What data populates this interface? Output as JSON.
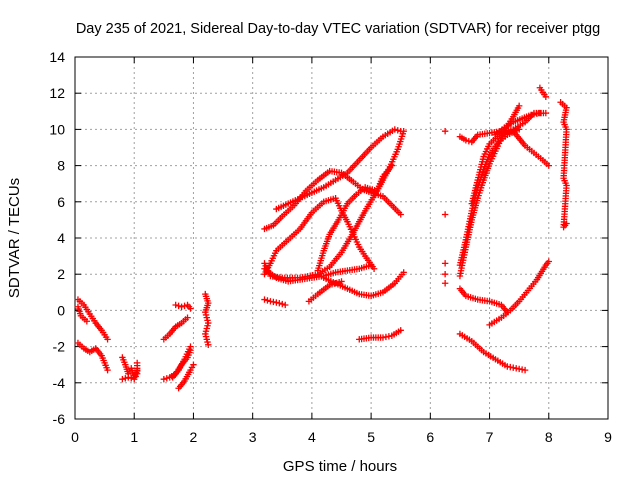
{
  "chart_data": {
    "type": "scatter",
    "title": "Day 235 of 2021, Sidereal Day-to-day VTEC variation (SDTVAR) for receiver ptgg",
    "xlabel": "GPS time / hours",
    "ylabel": "SDTVAR / TECUs",
    "xlim": [
      0,
      9
    ],
    "ylim": [
      -6,
      14
    ],
    "xticks": [
      0,
      1,
      2,
      3,
      4,
      5,
      6,
      7,
      8,
      9
    ],
    "yticks": [
      -6,
      -4,
      -2,
      0,
      2,
      4,
      6,
      8,
      10,
      12,
      14
    ],
    "grid": true,
    "marker": "+",
    "color": "#ff0000",
    "series": [
      {
        "values": [
          [
            0.05,
            0.6
          ],
          [
            0.15,
            0.3
          ],
          [
            0.25,
            -0.2
          ],
          [
            0.35,
            -0.7
          ],
          [
            0.45,
            -1.1
          ],
          [
            0.55,
            -1.6
          ]
        ]
      },
      {
        "values": [
          [
            0.05,
            0.2
          ],
          [
            0.1,
            -0.3
          ],
          [
            0.2,
            -0.6
          ]
        ]
      },
      {
        "values": [
          [
            0.05,
            -1.8
          ],
          [
            0.15,
            -2.1
          ],
          [
            0.25,
            -2.3
          ],
          [
            0.35,
            -2.1
          ],
          [
            0.45,
            -2.5
          ],
          [
            0.5,
            -2.9
          ],
          [
            0.55,
            -3.3
          ]
        ]
      },
      {
        "values": [
          [
            0.8,
            -2.6
          ],
          [
            0.85,
            -3.0
          ],
          [
            0.9,
            -3.5
          ],
          [
            0.95,
            -3.2
          ],
          [
            1.0,
            -3.7
          ],
          [
            1.05,
            -3.3
          ]
        ]
      },
      {
        "values": [
          [
            0.8,
            -3.8
          ],
          [
            0.9,
            -3.7
          ],
          [
            1.0,
            -3.8
          ],
          [
            1.05,
            -3.5
          ],
          [
            1.05,
            -2.9
          ]
        ]
      },
      {
        "values": [
          [
            1.5,
            -3.8
          ],
          [
            1.6,
            -3.7
          ],
          [
            1.7,
            -3.5
          ],
          [
            1.8,
            -3.0
          ],
          [
            1.9,
            -2.6
          ],
          [
            1.95,
            -2.2
          ]
        ]
      },
      {
        "values": [
          [
            1.65,
            -3.7
          ],
          [
            1.75,
            -3.3
          ],
          [
            1.85,
            -2.7
          ],
          [
            1.95,
            -2.0
          ]
        ]
      },
      {
        "values": [
          [
            1.75,
            -4.3
          ],
          [
            1.85,
            -3.9
          ],
          [
            1.95,
            -3.3
          ],
          [
            2.0,
            -3.0
          ]
        ]
      },
      {
        "values": [
          [
            1.5,
            -1.6
          ],
          [
            1.6,
            -1.3
          ],
          [
            1.7,
            -0.9
          ],
          [
            1.8,
            -0.7
          ],
          [
            1.9,
            -0.4
          ]
        ]
      },
      {
        "values": [
          [
            1.7,
            0.3
          ],
          [
            1.8,
            0.2
          ],
          [
            1.9,
            0.3
          ],
          [
            1.95,
            0.1
          ]
        ]
      },
      {
        "values": [
          [
            2.2,
            0.9
          ],
          [
            2.25,
            0.4
          ],
          [
            2.2,
            -0.1
          ],
          [
            2.25,
            -0.7
          ],
          [
            2.2,
            -1.3
          ],
          [
            2.25,
            -1.9
          ]
        ]
      },
      {
        "values": [
          [
            3.2,
            0.6
          ],
          [
            3.3,
            0.5
          ],
          [
            3.45,
            0.4
          ],
          [
            3.55,
            0.3
          ]
        ]
      },
      {
        "values": [
          [
            3.2,
            2.0
          ],
          [
            3.3,
            2.6
          ],
          [
            3.4,
            3.3
          ],
          [
            3.6,
            3.9
          ],
          [
            3.8,
            4.5
          ],
          [
            4.0,
            5.4
          ],
          [
            4.2,
            6.0
          ],
          [
            4.4,
            6.2
          ],
          [
            4.5,
            5.5
          ],
          [
            4.6,
            4.9
          ],
          [
            4.7,
            4.2
          ],
          [
            4.8,
            3.5
          ],
          [
            4.9,
            3.0
          ],
          [
            5.05,
            2.3
          ]
        ]
      },
      {
        "values": [
          [
            3.2,
            2.6
          ],
          [
            3.3,
            1.9
          ],
          [
            3.5,
            1.8
          ],
          [
            3.8,
            1.8
          ],
          [
            4.1,
            2.0
          ],
          [
            4.3,
            2.4
          ],
          [
            4.5,
            3.2
          ],
          [
            4.7,
            4.3
          ],
          [
            4.9,
            5.5
          ],
          [
            5.1,
            6.6
          ],
          [
            5.3,
            7.8
          ],
          [
            5.45,
            8.9
          ],
          [
            5.55,
            9.9
          ]
        ]
      },
      {
        "values": [
          [
            3.2,
            4.5
          ],
          [
            3.35,
            4.7
          ],
          [
            3.5,
            5.2
          ],
          [
            3.7,
            5.8
          ],
          [
            3.9,
            6.6
          ],
          [
            4.1,
            7.2
          ],
          [
            4.3,
            7.7
          ],
          [
            4.5,
            7.6
          ],
          [
            4.7,
            7.1
          ],
          [
            4.85,
            6.7
          ],
          [
            5.0,
            6.5
          ],
          [
            5.2,
            6.3
          ],
          [
            5.35,
            5.8
          ],
          [
            5.5,
            5.3
          ]
        ]
      },
      {
        "values": [
          [
            3.4,
            5.6
          ],
          [
            3.6,
            5.9
          ],
          [
            3.8,
            6.2
          ],
          [
            4.0,
            6.5
          ],
          [
            4.2,
            6.8
          ],
          [
            4.4,
            7.2
          ],
          [
            4.6,
            7.6
          ],
          [
            4.8,
            8.3
          ],
          [
            5.0,
            9.0
          ],
          [
            5.2,
            9.6
          ],
          [
            5.4,
            10.0
          ],
          [
            5.5,
            9.9
          ]
        ]
      },
      {
        "values": [
          [
            4.1,
            2.2
          ],
          [
            4.2,
            3.3
          ],
          [
            4.3,
            4.2
          ],
          [
            4.45,
            5.0
          ],
          [
            4.6,
            5.9
          ],
          [
            4.75,
            6.4
          ],
          [
            4.9,
            6.8
          ],
          [
            5.1,
            6.6
          ],
          [
            5.2,
            7.4
          ],
          [
            5.35,
            8.0
          ]
        ]
      },
      {
        "values": [
          [
            3.2,
            2.3
          ],
          [
            3.4,
            1.8
          ],
          [
            3.6,
            1.6
          ],
          [
            3.8,
            1.7
          ],
          [
            4.0,
            1.8
          ],
          [
            4.2,
            1.9
          ],
          [
            4.4,
            2.1
          ],
          [
            4.6,
            2.2
          ],
          [
            4.8,
            2.3
          ],
          [
            5.0,
            2.5
          ]
        ]
      },
      {
        "values": [
          [
            4.2,
            1.8
          ],
          [
            4.4,
            1.5
          ],
          [
            4.6,
            1.2
          ],
          [
            4.8,
            0.9
          ],
          [
            5.0,
            0.8
          ],
          [
            5.2,
            1.0
          ],
          [
            5.4,
            1.5
          ],
          [
            5.55,
            2.1
          ]
        ]
      },
      {
        "values": [
          [
            3.95,
            0.5
          ],
          [
            4.1,
            0.9
          ],
          [
            4.3,
            1.4
          ],
          [
            4.5,
            1.6
          ]
        ]
      },
      {
        "values": [
          [
            4.8,
            -1.6
          ],
          [
            5.0,
            -1.5
          ],
          [
            5.2,
            -1.5
          ],
          [
            5.35,
            -1.4
          ],
          [
            5.5,
            -1.1
          ]
        ]
      },
      {
        "values": [
          [
            6.25,
            9.9
          ],
          [
            6.25,
            5.3
          ],
          [
            6.25,
            2.6
          ],
          [
            6.25,
            2.0
          ],
          [
            6.25,
            1.5
          ]
        ]
      },
      {
        "values": [
          [
            6.5,
            1.9
          ],
          [
            6.6,
            3.5
          ],
          [
            6.7,
            5.0
          ],
          [
            6.8,
            6.2
          ],
          [
            6.9,
            7.2
          ],
          [
            7.0,
            8.1
          ],
          [
            7.1,
            8.8
          ],
          [
            7.2,
            9.5
          ],
          [
            7.3,
            10.2
          ],
          [
            7.4,
            10.7
          ],
          [
            7.5,
            11.3
          ]
        ]
      },
      {
        "values": [
          [
            6.5,
            2.5
          ],
          [
            6.6,
            3.9
          ],
          [
            6.7,
            5.5
          ],
          [
            6.8,
            6.8
          ],
          [
            6.9,
            7.8
          ],
          [
            7.0,
            8.6
          ],
          [
            7.15,
            9.3
          ],
          [
            7.3,
            9.7
          ],
          [
            7.5,
            10.0
          ]
        ]
      },
      {
        "values": [
          [
            6.5,
            9.6
          ],
          [
            6.6,
            9.4
          ],
          [
            6.7,
            9.3
          ],
          [
            6.8,
            9.7
          ],
          [
            7.0,
            9.8
          ],
          [
            7.2,
            9.9
          ],
          [
            7.4,
            10.0
          ],
          [
            7.6,
            10.4
          ],
          [
            7.75,
            10.9
          ],
          [
            7.95,
            10.9
          ]
        ]
      },
      {
        "values": [
          [
            6.7,
            5.9
          ],
          [
            6.8,
            7.2
          ],
          [
            6.9,
            8.5
          ],
          [
            7.0,
            9.2
          ],
          [
            7.2,
            9.8
          ],
          [
            7.4,
            9.9
          ],
          [
            7.5,
            9.5
          ],
          [
            7.6,
            9.1
          ],
          [
            7.75,
            8.7
          ],
          [
            7.9,
            8.3
          ],
          [
            8.0,
            8.0
          ]
        ]
      },
      {
        "values": [
          [
            7.1,
            9.7
          ],
          [
            7.25,
            10.1
          ],
          [
            7.4,
            10.4
          ],
          [
            7.55,
            10.6
          ],
          [
            7.7,
            10.8
          ],
          [
            7.85,
            10.9
          ]
        ]
      },
      {
        "values": [
          [
            7.85,
            12.3
          ],
          [
            7.95,
            11.8
          ]
        ]
      },
      {
        "values": [
          [
            8.2,
            11.5
          ],
          [
            8.3,
            11.2
          ],
          [
            8.25,
            10.4
          ],
          [
            8.3,
            10.0
          ],
          [
            8.25,
            7.3
          ],
          [
            8.3,
            6.9
          ],
          [
            8.25,
            4.6
          ],
          [
            8.3,
            4.8
          ]
        ]
      },
      {
        "values": [
          [
            6.5,
            1.2
          ],
          [
            6.6,
            0.8
          ],
          [
            6.8,
            0.6
          ],
          [
            7.0,
            0.5
          ],
          [
            7.2,
            0.3
          ],
          [
            7.3,
            -0.1
          ]
        ]
      },
      {
        "values": [
          [
            7.0,
            -0.8
          ],
          [
            7.2,
            -0.4
          ],
          [
            7.35,
            0.0
          ],
          [
            7.5,
            0.5
          ],
          [
            7.65,
            1.1
          ],
          [
            7.8,
            1.7
          ],
          [
            7.95,
            2.5
          ],
          [
            8.0,
            2.7
          ]
        ]
      },
      {
        "values": [
          [
            6.5,
            -1.3
          ],
          [
            6.7,
            -1.7
          ],
          [
            6.9,
            -2.3
          ],
          [
            7.1,
            -2.7
          ],
          [
            7.3,
            -3.1
          ],
          [
            7.45,
            -3.2
          ],
          [
            7.6,
            -3.3
          ]
        ]
      }
    ]
  }
}
